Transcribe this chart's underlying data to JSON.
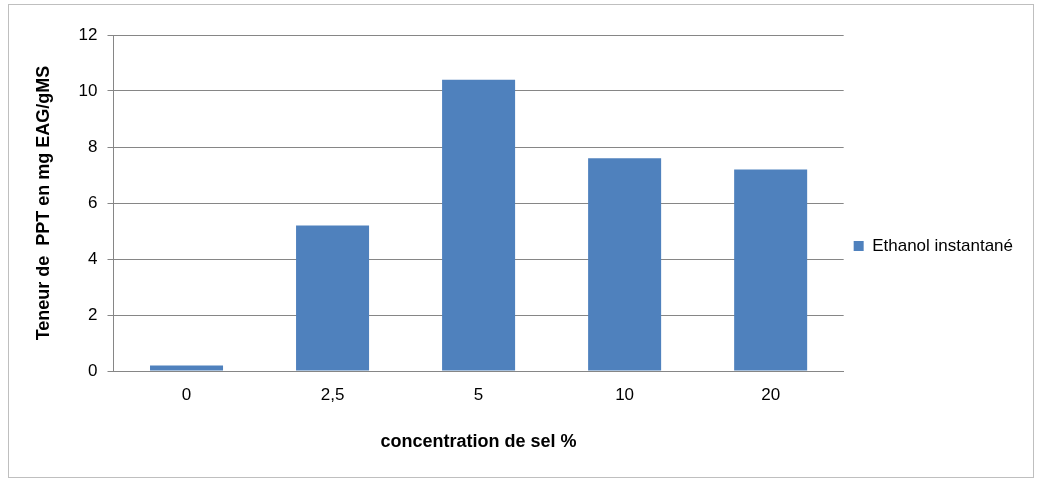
{
  "chart_data": {
    "type": "bar",
    "xlabel": "concentration de sel %",
    "ylabel": "Teneur de  PPT en mg EAG/gMS",
    "categories": [
      "0",
      "2,5",
      "5",
      "10",
      "20"
    ],
    "series": [
      {
        "name": "Ethanol instantané",
        "color": "#4f81bd",
        "values": [
          0.2,
          5.2,
          10.4,
          7.6,
          7.2
        ]
      }
    ],
    "ylim": [
      0,
      12
    ],
    "yticks": [
      0,
      2,
      4,
      6,
      8,
      10,
      12
    ],
    "grid": "y",
    "legend": "right"
  }
}
